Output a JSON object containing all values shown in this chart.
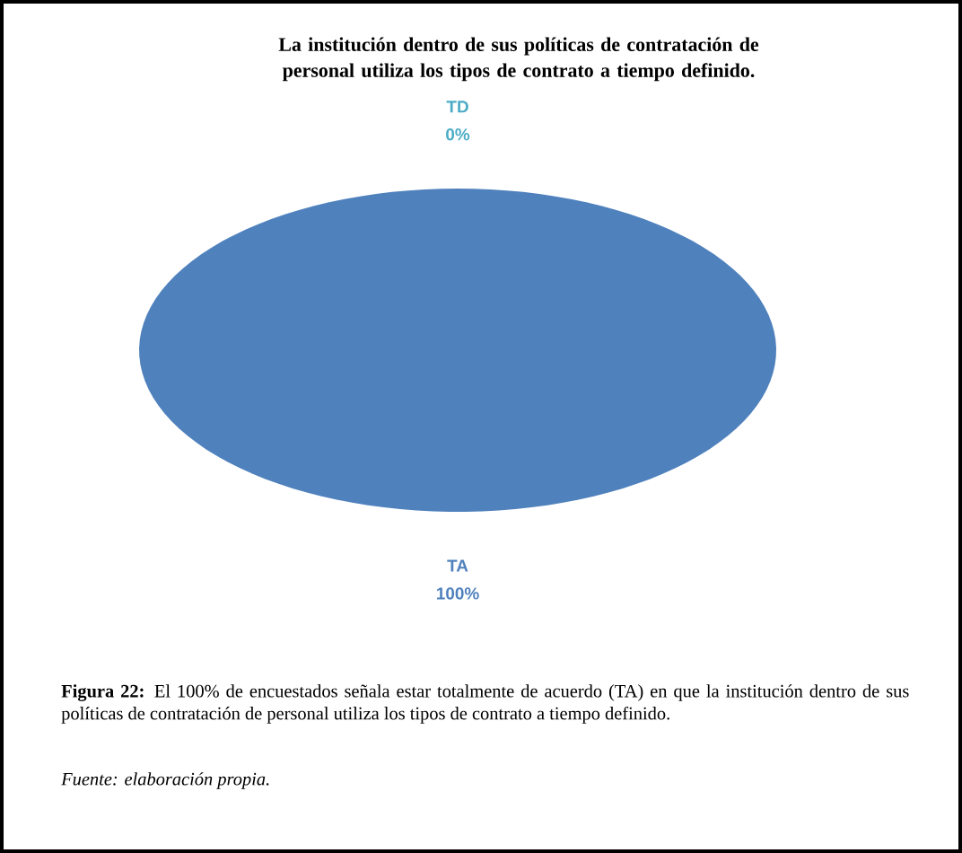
{
  "chart_data": {
    "type": "pie",
    "title": "La institución dentro de sus políticas de contratación de personal utiliza los tipos de contrato a tiempo definido.",
    "categories": [
      "TA",
      "TD"
    ],
    "values": [
      100,
      0
    ],
    "colors": [
      "#4f81bd",
      "#4bacc6"
    ],
    "value_labels": [
      "100%",
      "0%"
    ],
    "annotations": [
      "**Figura 22:** El 100% de encuestados señala estar totalmente de acuerdo (TA) en que la institución dentro de sus políticas de contratación de personal utiliza los tipos de contrato a tiempo definido.",
      "Fuente: elaboración propia."
    ]
  }
}
